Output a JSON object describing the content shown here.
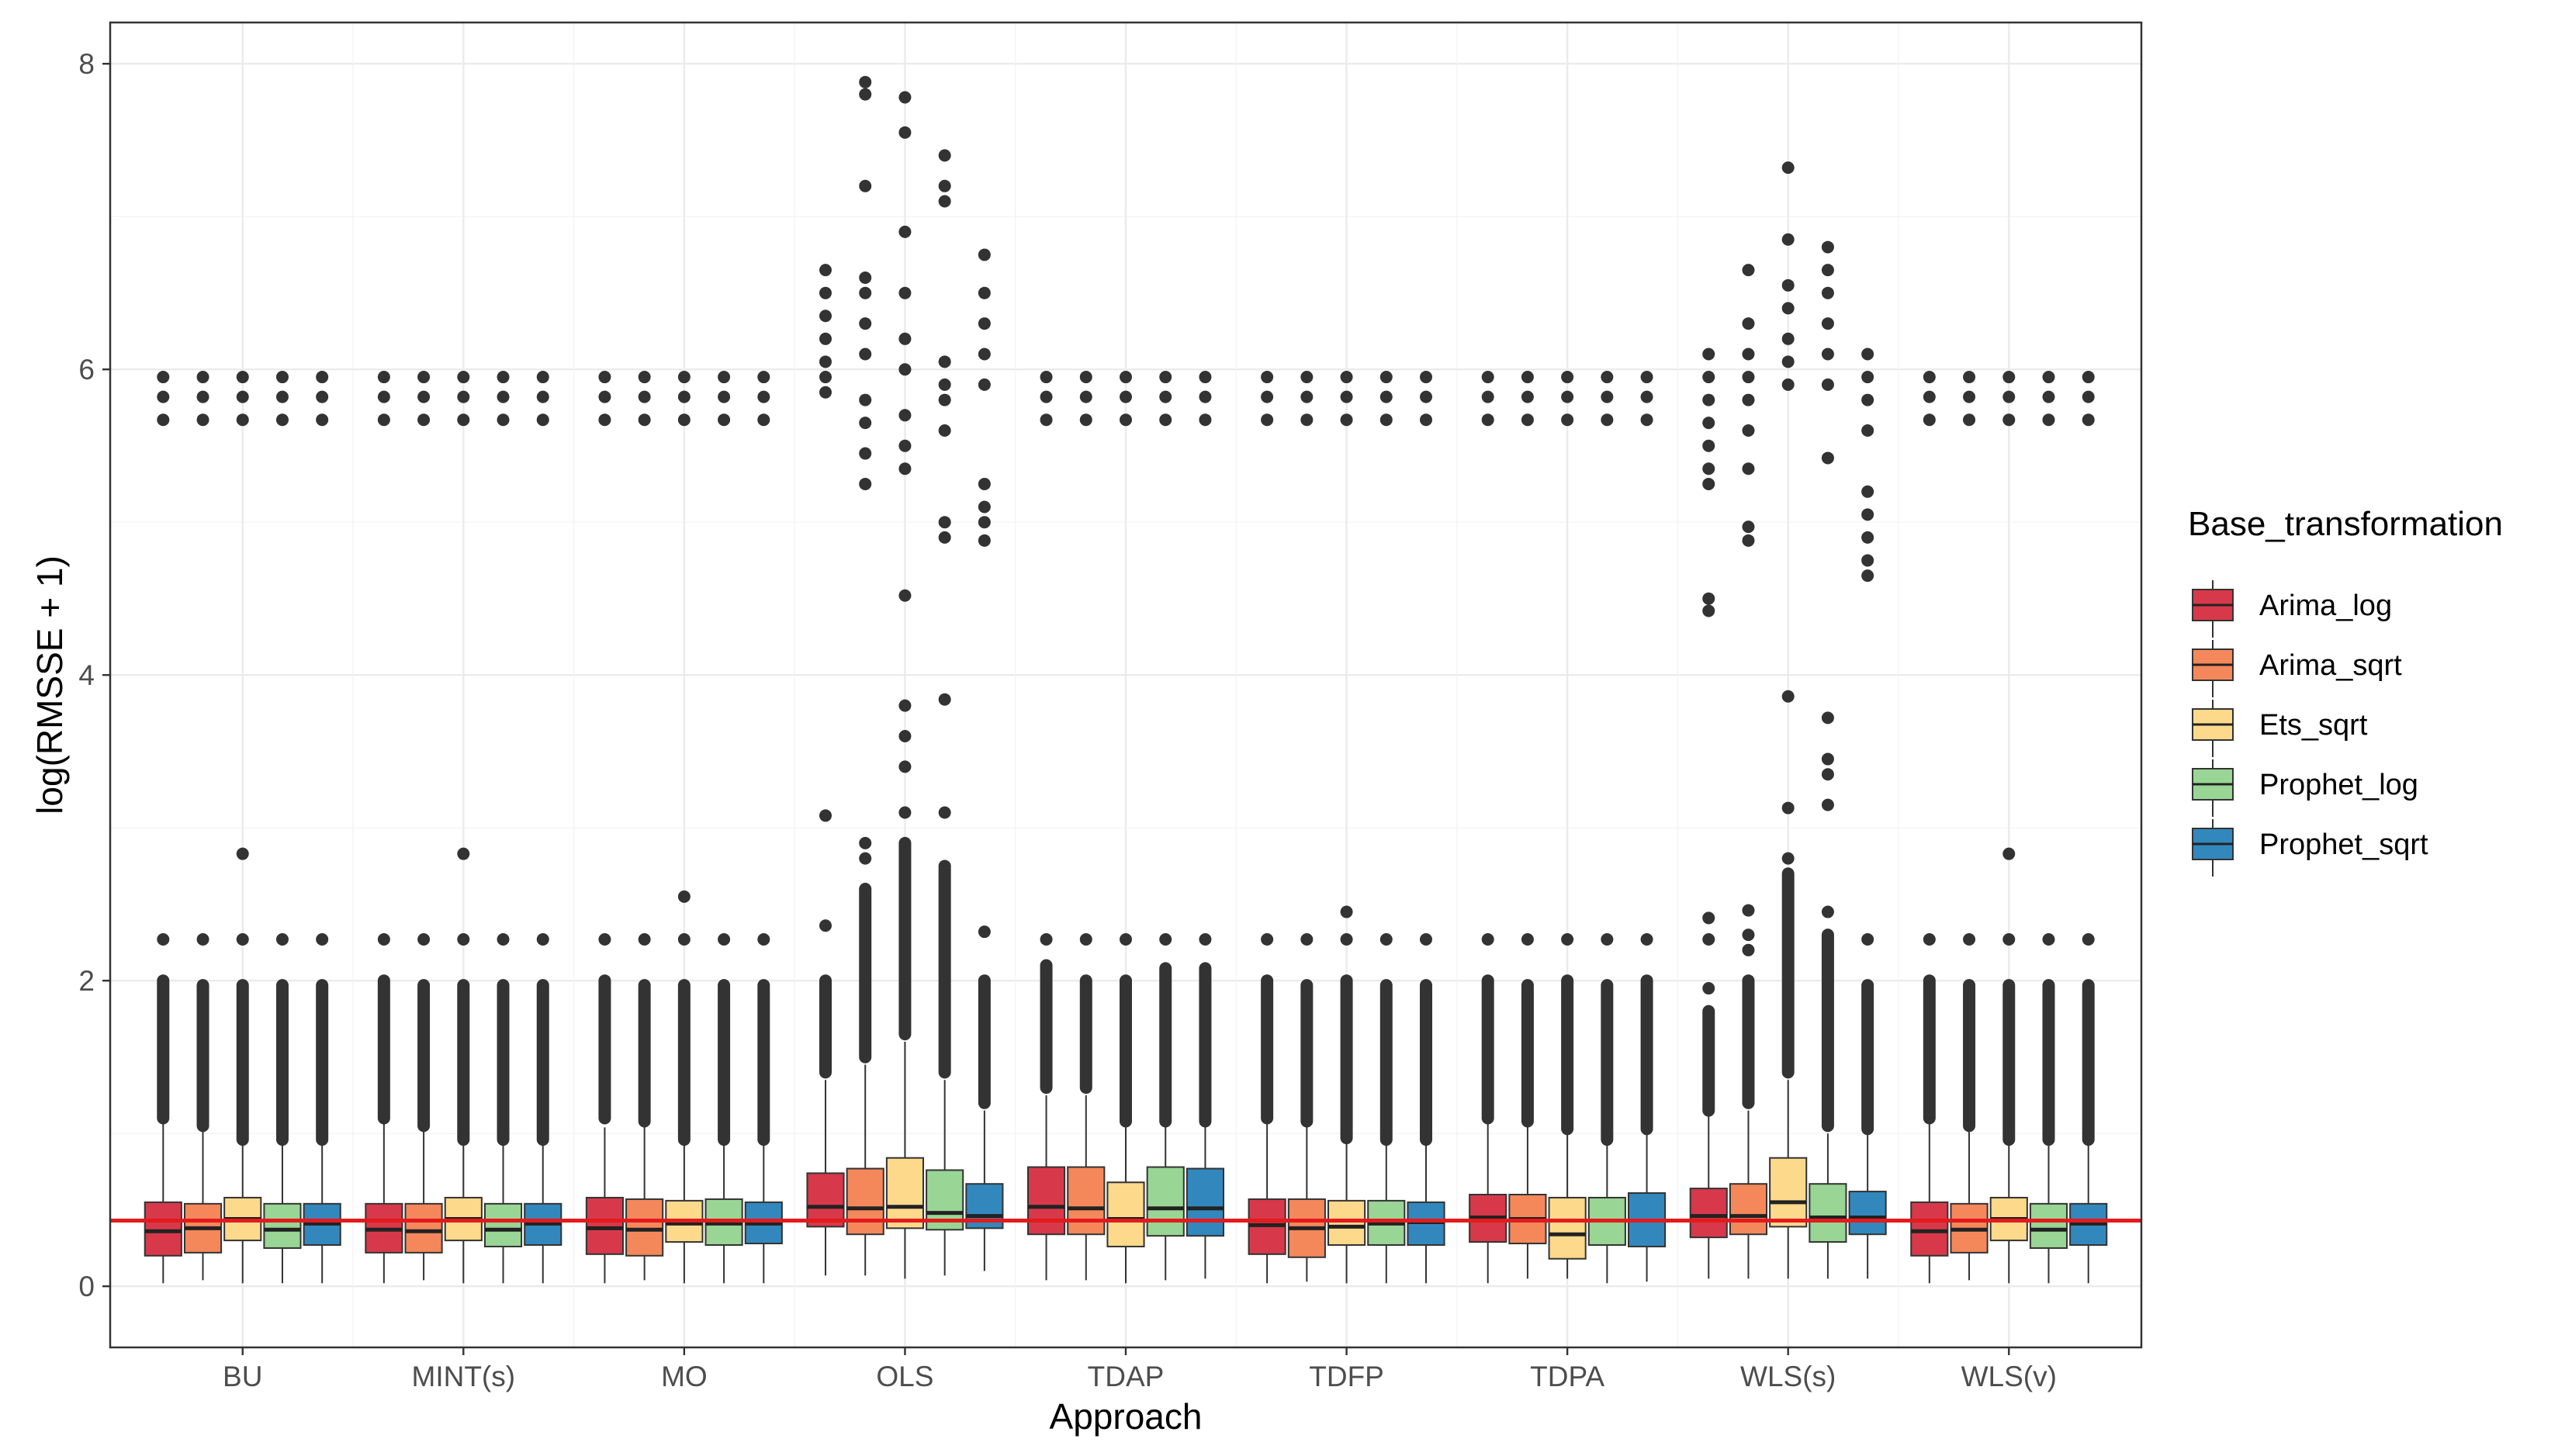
{
  "chart_data": {
    "type": "boxplot",
    "title": "",
    "xlabel": "Approach",
    "ylabel": "log(RMSSE + 1)",
    "ylim": [
      -0.4,
      8.27
    ],
    "yticks": [
      0,
      2,
      4,
      6,
      8
    ],
    "grid": true,
    "legend_title": "Base_transformation",
    "legend_position": "right",
    "reference_line": {
      "y": 0.43,
      "color": "#e41a1c"
    },
    "categories": [
      "BU",
      "MINT(s)",
      "MO",
      "OLS",
      "TDAP",
      "TDFP",
      "TDPA",
      "WLS(s)",
      "WLS(v)"
    ],
    "series": [
      {
        "name": "Arima_log",
        "color": "#d7394a",
        "boxes": [
          {
            "whislo": 0.02,
            "q1": 0.2,
            "med": 0.36,
            "q3": 0.55,
            "whishi": 1.07,
            "cluster_lo": 1.1,
            "cluster_hi": 2.0,
            "mid_outliers": [
              2.27
            ],
            "high_outliers": [
              5.67,
              5.82,
              5.95
            ]
          },
          {
            "whislo": 0.02,
            "q1": 0.22,
            "med": 0.37,
            "q3": 0.54,
            "whishi": 1.07,
            "cluster_lo": 1.1,
            "cluster_hi": 2.0,
            "mid_outliers": [
              2.27
            ],
            "high_outliers": [
              5.67,
              5.82,
              5.95
            ]
          },
          {
            "whislo": 0.02,
            "q1": 0.21,
            "med": 0.38,
            "q3": 0.58,
            "whishi": 1.04,
            "cluster_lo": 1.1,
            "cluster_hi": 2.0,
            "mid_outliers": [
              2.27
            ],
            "high_outliers": [
              5.67,
              5.82,
              5.95
            ]
          },
          {
            "whislo": 0.07,
            "q1": 0.39,
            "med": 0.52,
            "q3": 0.74,
            "whishi": 1.35,
            "cluster_lo": 1.4,
            "cluster_hi": 2.0,
            "mid_outliers": [
              2.36,
              3.08
            ],
            "high_outliers": [
              5.85,
              5.95,
              6.05,
              6.2,
              6.35,
              6.5,
              6.65
            ]
          },
          {
            "whislo": 0.04,
            "q1": 0.34,
            "med": 0.52,
            "q3": 0.78,
            "whishi": 1.25,
            "cluster_lo": 1.3,
            "cluster_hi": 2.1,
            "mid_outliers": [
              2.27
            ],
            "high_outliers": [
              5.67,
              5.82,
              5.95
            ]
          },
          {
            "whislo": 0.02,
            "q1": 0.21,
            "med": 0.4,
            "q3": 0.57,
            "whishi": 1.07,
            "cluster_lo": 1.1,
            "cluster_hi": 2.0,
            "mid_outliers": [
              2.27
            ],
            "high_outliers": [
              5.67,
              5.82,
              5.95
            ]
          },
          {
            "whislo": 0.02,
            "q1": 0.29,
            "med": 0.45,
            "q3": 0.6,
            "whishi": 1.07,
            "cluster_lo": 1.1,
            "cluster_hi": 2.0,
            "mid_outliers": [
              2.27
            ],
            "high_outliers": [
              5.67,
              5.82,
              5.95
            ]
          },
          {
            "whislo": 0.05,
            "q1": 0.32,
            "med": 0.46,
            "q3": 0.64,
            "whishi": 1.12,
            "cluster_lo": 1.15,
            "cluster_hi": 1.8,
            "mid_outliers": [
              1.95,
              2.27,
              2.41
            ],
            "high_outliers": [
              4.42,
              4.5,
              5.25,
              5.35,
              5.5,
              5.65,
              5.8,
              5.95,
              6.1
            ]
          },
          {
            "whislo": 0.02,
            "q1": 0.2,
            "med": 0.36,
            "q3": 0.55,
            "whishi": 1.07,
            "cluster_lo": 1.1,
            "cluster_hi": 2.0,
            "mid_outliers": [
              2.27
            ],
            "high_outliers": [
              5.67,
              5.82,
              5.95
            ]
          }
        ]
      },
      {
        "name": "Arima_sqrt",
        "color": "#f4885b",
        "boxes": [
          {
            "whislo": 0.04,
            "q1": 0.22,
            "med": 0.38,
            "q3": 0.54,
            "whishi": 1.03,
            "cluster_lo": 1.05,
            "cluster_hi": 1.97,
            "mid_outliers": [
              2.27
            ],
            "high_outliers": [
              5.67,
              5.82,
              5.95
            ]
          },
          {
            "whislo": 0.04,
            "q1": 0.22,
            "med": 0.36,
            "q3": 0.54,
            "whishi": 1.03,
            "cluster_lo": 1.05,
            "cluster_hi": 1.97,
            "mid_outliers": [
              2.27
            ],
            "high_outliers": [
              5.67,
              5.82,
              5.95
            ]
          },
          {
            "whislo": 0.04,
            "q1": 0.2,
            "med": 0.37,
            "q3": 0.57,
            "whishi": 1.05,
            "cluster_lo": 1.08,
            "cluster_hi": 1.97,
            "mid_outliers": [
              2.27
            ],
            "high_outliers": [
              5.67,
              5.82,
              5.95
            ]
          },
          {
            "whislo": 0.07,
            "q1": 0.34,
            "med": 0.51,
            "q3": 0.77,
            "whishi": 1.45,
            "cluster_lo": 1.5,
            "cluster_hi": 2.6,
            "mid_outliers": [
              2.8,
              2.9
            ],
            "high_outliers": [
              5.25,
              5.45,
              5.65,
              5.8,
              6.1,
              6.3,
              6.5,
              6.6,
              7.2,
              7.8,
              7.88
            ]
          },
          {
            "whislo": 0.04,
            "q1": 0.34,
            "med": 0.51,
            "q3": 0.78,
            "whishi": 1.25,
            "cluster_lo": 1.3,
            "cluster_hi": 2.0,
            "mid_outliers": [
              2.27
            ],
            "high_outliers": [
              5.67,
              5.82,
              5.95
            ]
          },
          {
            "whislo": 0.03,
            "q1": 0.19,
            "med": 0.38,
            "q3": 0.57,
            "whishi": 1.05,
            "cluster_lo": 1.08,
            "cluster_hi": 1.97,
            "mid_outliers": [
              2.27
            ],
            "high_outliers": [
              5.67,
              5.82,
              5.95
            ]
          },
          {
            "whislo": 0.05,
            "q1": 0.28,
            "med": 0.44,
            "q3": 0.6,
            "whishi": 1.05,
            "cluster_lo": 1.08,
            "cluster_hi": 1.97,
            "mid_outliers": [
              2.27
            ],
            "high_outliers": [
              5.67,
              5.82,
              5.95
            ]
          },
          {
            "whislo": 0.05,
            "q1": 0.34,
            "med": 0.46,
            "q3": 0.67,
            "whishi": 1.15,
            "cluster_lo": 1.2,
            "cluster_hi": 2.0,
            "mid_outliers": [
              2.2,
              2.3,
              2.46
            ],
            "high_outliers": [
              4.88,
              4.97,
              5.35,
              5.6,
              5.8,
              5.95,
              6.1,
              6.3,
              6.65
            ]
          },
          {
            "whislo": 0.04,
            "q1": 0.22,
            "med": 0.37,
            "q3": 0.54,
            "whishi": 1.03,
            "cluster_lo": 1.05,
            "cluster_hi": 1.97,
            "mid_outliers": [
              2.27
            ],
            "high_outliers": [
              5.67,
              5.82,
              5.95
            ]
          }
        ]
      },
      {
        "name": "Ets_sqrt",
        "color": "#fdd98c",
        "boxes": [
          {
            "whislo": 0.02,
            "q1": 0.3,
            "med": 0.44,
            "q3": 0.58,
            "whishi": 0.94,
            "cluster_lo": 0.96,
            "cluster_hi": 1.97,
            "mid_outliers": [
              2.27,
              2.83
            ],
            "high_outliers": [
              5.67,
              5.82,
              5.95
            ]
          },
          {
            "whislo": 0.02,
            "q1": 0.3,
            "med": 0.44,
            "q3": 0.58,
            "whishi": 0.94,
            "cluster_lo": 0.96,
            "cluster_hi": 1.97,
            "mid_outliers": [
              2.27,
              2.83
            ],
            "high_outliers": [
              5.67,
              5.82,
              5.95
            ]
          },
          {
            "whislo": 0.02,
            "q1": 0.29,
            "med": 0.41,
            "q3": 0.56,
            "whishi": 0.93,
            "cluster_lo": 0.96,
            "cluster_hi": 1.97,
            "mid_outliers": [
              2.27,
              2.55
            ],
            "high_outliers": [
              5.67,
              5.82,
              5.95
            ]
          },
          {
            "whislo": 0.05,
            "q1": 0.38,
            "med": 0.52,
            "q3": 0.84,
            "whishi": 1.6,
            "cluster_lo": 1.65,
            "cluster_hi": 2.9,
            "mid_outliers": [
              3.1,
              3.4,
              3.6,
              3.8,
              4.52
            ],
            "high_outliers": [
              5.35,
              5.5,
              5.7,
              6.0,
              6.2,
              6.5,
              6.9,
              7.55,
              7.78
            ]
          },
          {
            "whislo": 0.02,
            "q1": 0.26,
            "med": 0.44,
            "q3": 0.68,
            "whishi": 1.05,
            "cluster_lo": 1.08,
            "cluster_hi": 2.0,
            "mid_outliers": [
              2.27
            ],
            "high_outliers": [
              5.67,
              5.82,
              5.95
            ]
          },
          {
            "whislo": 0.02,
            "q1": 0.27,
            "med": 0.39,
            "q3": 0.56,
            "whishi": 0.94,
            "cluster_lo": 0.97,
            "cluster_hi": 2.0,
            "mid_outliers": [
              2.27,
              2.45
            ],
            "high_outliers": [
              5.67,
              5.82,
              5.95
            ]
          },
          {
            "whislo": 0.05,
            "q1": 0.18,
            "med": 0.34,
            "q3": 0.58,
            "whishi": 1.0,
            "cluster_lo": 1.03,
            "cluster_hi": 2.0,
            "mid_outliers": [
              2.27
            ],
            "high_outliers": [
              5.67,
              5.82,
              5.95
            ]
          },
          {
            "whislo": 0.05,
            "q1": 0.39,
            "med": 0.55,
            "q3": 0.84,
            "whishi": 1.35,
            "cluster_lo": 1.4,
            "cluster_hi": 2.7,
            "mid_outliers": [
              2.8,
              3.13,
              3.86
            ],
            "high_outliers": [
              5.9,
              6.05,
              6.2,
              6.4,
              6.55,
              6.85,
              7.32
            ]
          },
          {
            "whislo": 0.02,
            "q1": 0.3,
            "med": 0.44,
            "q3": 0.58,
            "whishi": 0.94,
            "cluster_lo": 0.96,
            "cluster_hi": 1.97,
            "mid_outliers": [
              2.27,
              2.83
            ],
            "high_outliers": [
              5.67,
              5.82,
              5.95
            ]
          }
        ]
      },
      {
        "name": "Prophet_log",
        "color": "#99d594",
        "boxes": [
          {
            "whislo": 0.02,
            "q1": 0.25,
            "med": 0.37,
            "q3": 0.54,
            "whishi": 0.94,
            "cluster_lo": 0.96,
            "cluster_hi": 1.97,
            "mid_outliers": [
              2.27
            ],
            "high_outliers": [
              5.67,
              5.82,
              5.95
            ]
          },
          {
            "whislo": 0.02,
            "q1": 0.26,
            "med": 0.37,
            "q3": 0.54,
            "whishi": 0.94,
            "cluster_lo": 0.96,
            "cluster_hi": 1.97,
            "mid_outliers": [
              2.27
            ],
            "high_outliers": [
              5.67,
              5.82,
              5.95
            ]
          },
          {
            "whislo": 0.02,
            "q1": 0.27,
            "med": 0.41,
            "q3": 0.57,
            "whishi": 0.94,
            "cluster_lo": 0.96,
            "cluster_hi": 1.97,
            "mid_outliers": [
              2.27
            ],
            "high_outliers": [
              5.67,
              5.82,
              5.95
            ]
          },
          {
            "whislo": 0.07,
            "q1": 0.37,
            "med": 0.48,
            "q3": 0.76,
            "whishi": 1.35,
            "cluster_lo": 1.4,
            "cluster_hi": 2.75,
            "mid_outliers": [
              3.1,
              3.84
            ],
            "high_outliers": [
              4.9,
              5.0,
              5.6,
              5.8,
              5.9,
              6.05,
              7.1,
              7.2,
              7.4
            ]
          },
          {
            "whislo": 0.04,
            "q1": 0.33,
            "med": 0.51,
            "q3": 0.78,
            "whishi": 1.05,
            "cluster_lo": 1.08,
            "cluster_hi": 2.08,
            "mid_outliers": [
              2.27
            ],
            "high_outliers": [
              5.67,
              5.82,
              5.95
            ]
          },
          {
            "whislo": 0.02,
            "q1": 0.27,
            "med": 0.41,
            "q3": 0.56,
            "whishi": 0.94,
            "cluster_lo": 0.96,
            "cluster_hi": 1.97,
            "mid_outliers": [
              2.27
            ],
            "high_outliers": [
              5.67,
              5.82,
              5.95
            ]
          },
          {
            "whislo": 0.02,
            "q1": 0.27,
            "med": 0.43,
            "q3": 0.58,
            "whishi": 0.94,
            "cluster_lo": 0.96,
            "cluster_hi": 1.97,
            "mid_outliers": [
              2.27
            ],
            "high_outliers": [
              5.67,
              5.82,
              5.95
            ]
          },
          {
            "whislo": 0.05,
            "q1": 0.29,
            "med": 0.45,
            "q3": 0.67,
            "whishi": 1.0,
            "cluster_lo": 1.05,
            "cluster_hi": 2.3,
            "mid_outliers": [
              2.45,
              3.15,
              3.35,
              3.45,
              3.72
            ],
            "high_outliers": [
              5.42,
              5.9,
              6.1,
              6.3,
              6.5,
              6.65,
              6.8
            ]
          },
          {
            "whislo": 0.02,
            "q1": 0.25,
            "med": 0.37,
            "q3": 0.54,
            "whishi": 0.94,
            "cluster_lo": 0.96,
            "cluster_hi": 1.97,
            "mid_outliers": [
              2.27
            ],
            "high_outliers": [
              5.67,
              5.82,
              5.95
            ]
          }
        ]
      },
      {
        "name": "Prophet_sqrt",
        "color": "#3288bd",
        "boxes": [
          {
            "whislo": 0.02,
            "q1": 0.27,
            "med": 0.41,
            "q3": 0.54,
            "whishi": 0.94,
            "cluster_lo": 0.96,
            "cluster_hi": 1.97,
            "mid_outliers": [
              2.27
            ],
            "high_outliers": [
              5.67,
              5.82,
              5.95
            ]
          },
          {
            "whislo": 0.02,
            "q1": 0.27,
            "med": 0.41,
            "q3": 0.54,
            "whishi": 0.94,
            "cluster_lo": 0.96,
            "cluster_hi": 1.97,
            "mid_outliers": [
              2.27
            ],
            "high_outliers": [
              5.67,
              5.82,
              5.95
            ]
          },
          {
            "whislo": 0.02,
            "q1": 0.28,
            "med": 0.41,
            "q3": 0.55,
            "whishi": 0.94,
            "cluster_lo": 0.96,
            "cluster_hi": 1.97,
            "mid_outliers": [
              2.27
            ],
            "high_outliers": [
              5.67,
              5.82,
              5.95
            ]
          },
          {
            "whislo": 0.1,
            "q1": 0.38,
            "med": 0.46,
            "q3": 0.67,
            "whishi": 1.15,
            "cluster_lo": 1.2,
            "cluster_hi": 2.0,
            "mid_outliers": [
              2.32
            ],
            "high_outliers": [
              4.88,
              5.0,
              5.1,
              5.25,
              5.9,
              6.1,
              6.3,
              6.5,
              6.75
            ]
          },
          {
            "whislo": 0.05,
            "q1": 0.33,
            "med": 0.51,
            "q3": 0.77,
            "whishi": 1.05,
            "cluster_lo": 1.08,
            "cluster_hi": 2.08,
            "mid_outliers": [
              2.27
            ],
            "high_outliers": [
              5.67,
              5.82,
              5.95
            ]
          },
          {
            "whislo": 0.02,
            "q1": 0.27,
            "med": 0.42,
            "q3": 0.55,
            "whishi": 0.94,
            "cluster_lo": 0.96,
            "cluster_hi": 1.97,
            "mid_outliers": [
              2.27
            ],
            "high_outliers": [
              5.67,
              5.82,
              5.95
            ]
          },
          {
            "whislo": 0.03,
            "q1": 0.26,
            "med": 0.43,
            "q3": 0.61,
            "whishi": 1.0,
            "cluster_lo": 1.03,
            "cluster_hi": 2.0,
            "mid_outliers": [
              2.27
            ],
            "high_outliers": [
              5.67,
              5.82,
              5.95
            ]
          },
          {
            "whislo": 0.05,
            "q1": 0.34,
            "med": 0.45,
            "q3": 0.62,
            "whishi": 1.0,
            "cluster_lo": 1.03,
            "cluster_hi": 1.97,
            "mid_outliers": [
              2.27
            ],
            "high_outliers": [
              4.65,
              4.75,
              4.9,
              5.05,
              5.2,
              5.6,
              5.8,
              5.95,
              6.1
            ]
          },
          {
            "whislo": 0.02,
            "q1": 0.27,
            "med": 0.41,
            "q3": 0.54,
            "whishi": 0.94,
            "cluster_lo": 0.96,
            "cluster_hi": 1.97,
            "mid_outliers": [
              2.27
            ],
            "high_outliers": [
              5.67,
              5.82,
              5.95
            ]
          }
        ]
      }
    ]
  }
}
